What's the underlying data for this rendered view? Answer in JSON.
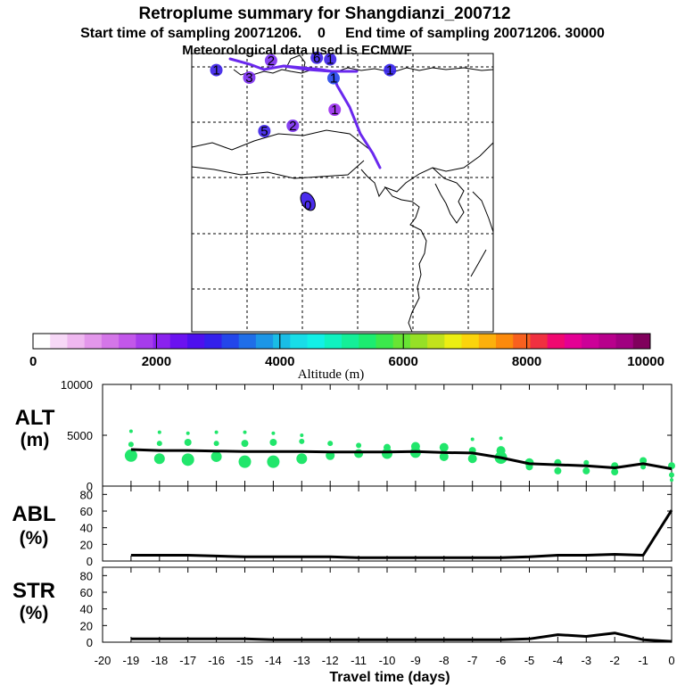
{
  "header": {
    "title": "Retroplume summary for Shangdianzi_200712",
    "subtitle": "Start time of sampling 20071206.    0     End time of sampling 20071206. 30000",
    "met_line": "Meteorological data used is ECMWF"
  },
  "colorbar": {
    "label": "Altitude (m)",
    "tick_labels": [
      "0",
      "2000",
      "4000",
      "6000",
      "8000",
      "10000"
    ],
    "range": [
      0,
      10000
    ],
    "colors": [
      "#ffffff",
      "#f7d8f7",
      "#efb8f0",
      "#e397eb",
      "#d476e8",
      "#c257ea",
      "#a63cec",
      "#8a22ee",
      "#6b12f0",
      "#4d10ee",
      "#3320ec",
      "#2346ea",
      "#1f6ee8",
      "#1c96e6",
      "#1abde6",
      "#18dde8",
      "#12f0e6",
      "#10f2c0",
      "#14ef98",
      "#1cec70",
      "#3be84c",
      "#68e434",
      "#96e026",
      "#c2e21c",
      "#ecee12",
      "#fbd40c",
      "#fcb00c",
      "#fc8a0c",
      "#f8601e",
      "#f03040",
      "#f00870",
      "#e40094",
      "#cc0098",
      "#b8008c",
      "#a00080",
      "#80005c"
    ]
  },
  "map": {
    "labels": [
      {
        "text": "1",
        "lon": 100.4,
        "lat": 68.9,
        "color": "#3a1fe8"
      },
      {
        "text": "3",
        "lon": 106.3,
        "lat": 67.5,
        "color": "#7a2cf0"
      },
      {
        "text": "2",
        "lon": 110.2,
        "lat": 70.7,
        "color": "#7a2cf0"
      },
      {
        "text": "6",
        "lon": 118.4,
        "lat": 71.2,
        "color": "#3a1fe8"
      },
      {
        "text": "1",
        "lon": 120.8,
        "lat": 70.9,
        "color": "#3a1fe8"
      },
      {
        "text": "1",
        "lon": 121.4,
        "lat": 67.4,
        "color": "#2346ea"
      },
      {
        "text": "1",
        "lon": 131.5,
        "lat": 68.9,
        "color": "#3320ec"
      },
      {
        "text": "5",
        "lon": 109.0,
        "lat": 57.5,
        "color": "#3a1fe8"
      },
      {
        "text": "2",
        "lon": 114.1,
        "lat": 58.5,
        "color": "#7a2cf0"
      },
      {
        "text": "1",
        "lon": 121.6,
        "lat": 61.5,
        "color": "#9a2cf0"
      },
      {
        "text": "0",
        "lon": 116.8,
        "lat": 43.7,
        "color": "#000000"
      }
    ]
  },
  "panels": {
    "alt_label": "ALT",
    "alt_unit": "(m)",
    "abl_label": "ABL",
    "abl_unit": "(%)",
    "str_label": "STR",
    "str_unit": "(%)",
    "xlabel": "Travel time (days)"
  },
  "chart_data": [
    {
      "type": "line",
      "panel": "ALT",
      "title": "Retroplume summary for Shangdianzi_200712",
      "ylabel": "ALT (m)",
      "xlabel": "Travel time (days)",
      "xlim": [
        -20,
        0
      ],
      "ylim": [
        0,
        10000
      ],
      "y_ticks": [
        "10000",
        "5000",
        "0"
      ],
      "x": [
        -19,
        -18,
        -17,
        -16,
        -15,
        -14,
        -13,
        -12,
        -11,
        -10,
        -9,
        -8,
        -7,
        -6,
        -5,
        -4,
        -3,
        -2,
        -1,
        0
      ],
      "values": [
        3600,
        3500,
        3500,
        3450,
        3400,
        3400,
        3400,
        3350,
        3350,
        3350,
        3400,
        3300,
        3250,
        2800,
        2200,
        2100,
        2000,
        1800,
        2200,
        1700
      ],
      "cluster_points": [
        {
          "x": -19,
          "y": 3000,
          "size": 7
        },
        {
          "x": -19,
          "y": 4100,
          "size": 3
        },
        {
          "x": -19,
          "y": 5400,
          "size": 2
        },
        {
          "x": -18,
          "y": 2700,
          "size": 6
        },
        {
          "x": -18,
          "y": 4200,
          "size": 3
        },
        {
          "x": -18,
          "y": 5300,
          "size": 2
        },
        {
          "x": -17,
          "y": 2600,
          "size": 7
        },
        {
          "x": -17,
          "y": 4300,
          "size": 4
        },
        {
          "x": -17,
          "y": 5200,
          "size": 2
        },
        {
          "x": -16,
          "y": 2900,
          "size": 6
        },
        {
          "x": -16,
          "y": 4200,
          "size": 3
        },
        {
          "x": -16,
          "y": 5300,
          "size": 2
        },
        {
          "x": -15,
          "y": 2400,
          "size": 7
        },
        {
          "x": -15,
          "y": 4200,
          "size": 4
        },
        {
          "x": -15,
          "y": 5300,
          "size": 2
        },
        {
          "x": -14,
          "y": 2400,
          "size": 7
        },
        {
          "x": -14,
          "y": 4300,
          "size": 4
        },
        {
          "x": -14,
          "y": 5200,
          "size": 2
        },
        {
          "x": -13,
          "y": 2700,
          "size": 6
        },
        {
          "x": -13,
          "y": 4400,
          "size": 3
        },
        {
          "x": -13,
          "y": 5000,
          "size": 2
        },
        {
          "x": -12,
          "y": 3000,
          "size": 5
        },
        {
          "x": -12,
          "y": 4200,
          "size": 3
        },
        {
          "x": -11,
          "y": 3200,
          "size": 5
        },
        {
          "x": -11,
          "y": 4000,
          "size": 3
        },
        {
          "x": -10,
          "y": 3200,
          "size": 6
        },
        {
          "x": -10,
          "y": 3800,
          "size": 4
        },
        {
          "x": -9,
          "y": 3300,
          "size": 6
        },
        {
          "x": -9,
          "y": 3900,
          "size": 5
        },
        {
          "x": -8,
          "y": 2900,
          "size": 5
        },
        {
          "x": -8,
          "y": 3800,
          "size": 5
        },
        {
          "x": -7,
          "y": 2700,
          "size": 5
        },
        {
          "x": -7,
          "y": 3500,
          "size": 4
        },
        {
          "x": -7,
          "y": 4600,
          "size": 2
        },
        {
          "x": -6,
          "y": 2800,
          "size": 7
        },
        {
          "x": -6,
          "y": 3500,
          "size": 5
        },
        {
          "x": -6,
          "y": 4700,
          "size": 2
        },
        {
          "x": -5,
          "y": 2300,
          "size": 5
        },
        {
          "x": -5,
          "y": 1900,
          "size": 4
        },
        {
          "x": -4,
          "y": 2300,
          "size": 4
        },
        {
          "x": -4,
          "y": 1500,
          "size": 4
        },
        {
          "x": -3,
          "y": 2300,
          "size": 3
        },
        {
          "x": -3,
          "y": 1500,
          "size": 4
        },
        {
          "x": -2,
          "y": 2000,
          "size": 4
        },
        {
          "x": -2,
          "y": 1400,
          "size": 4
        },
        {
          "x": -1,
          "y": 2500,
          "size": 4
        },
        {
          "x": -1,
          "y": 1900,
          "size": 3
        },
        {
          "x": 0,
          "y": 2000,
          "size": 4
        },
        {
          "x": 0,
          "y": 1100,
          "size": 3
        },
        {
          "x": 0,
          "y": 600,
          "size": 2
        }
      ]
    },
    {
      "type": "line",
      "panel": "ABL",
      "ylabel": "ABL (%)",
      "xlim": [
        -20,
        0
      ],
      "ylim": [
        0,
        90
      ],
      "y_ticks": [
        "0",
        "20",
        "40",
        "60",
        "80"
      ],
      "x": [
        -19,
        -18,
        -17,
        -16,
        -15,
        -14,
        -13,
        -12,
        -11,
        -10,
        -9,
        -8,
        -7,
        -6,
        -5,
        -4,
        -3,
        -2,
        -1,
        0
      ],
      "values": [
        7,
        7,
        7,
        6,
        5,
        5,
        5,
        5,
        4,
        4,
        4,
        4,
        4,
        4,
        5,
        7,
        7,
        8,
        7,
        61
      ]
    },
    {
      "type": "line",
      "panel": "STR",
      "ylabel": "STR (%)",
      "xlabel": "Travel time (days)",
      "xlim": [
        -20,
        0
      ],
      "ylim": [
        0,
        90
      ],
      "x_ticks": [
        "-20",
        "-19",
        "-18",
        "-17",
        "-16",
        "-15",
        "-14",
        "-13",
        "-12",
        "-11",
        "-10",
        "-9",
        "-8",
        "-7",
        "-6",
        "-5",
        "-4",
        "-3",
        "-2",
        "-1",
        "0"
      ],
      "y_ticks": [
        "0",
        "20",
        "40",
        "60",
        "80"
      ],
      "x": [
        -19,
        -18,
        -17,
        -16,
        -15,
        -14,
        -13,
        -12,
        -11,
        -10,
        -9,
        -8,
        -7,
        -6,
        -5,
        -4,
        -3,
        -2,
        -1,
        0
      ],
      "values": [
        4,
        4,
        4,
        4,
        4,
        3,
        3,
        3,
        3,
        3,
        3,
        3,
        3,
        3,
        4,
        9,
        7,
        11,
        3,
        1
      ]
    }
  ]
}
